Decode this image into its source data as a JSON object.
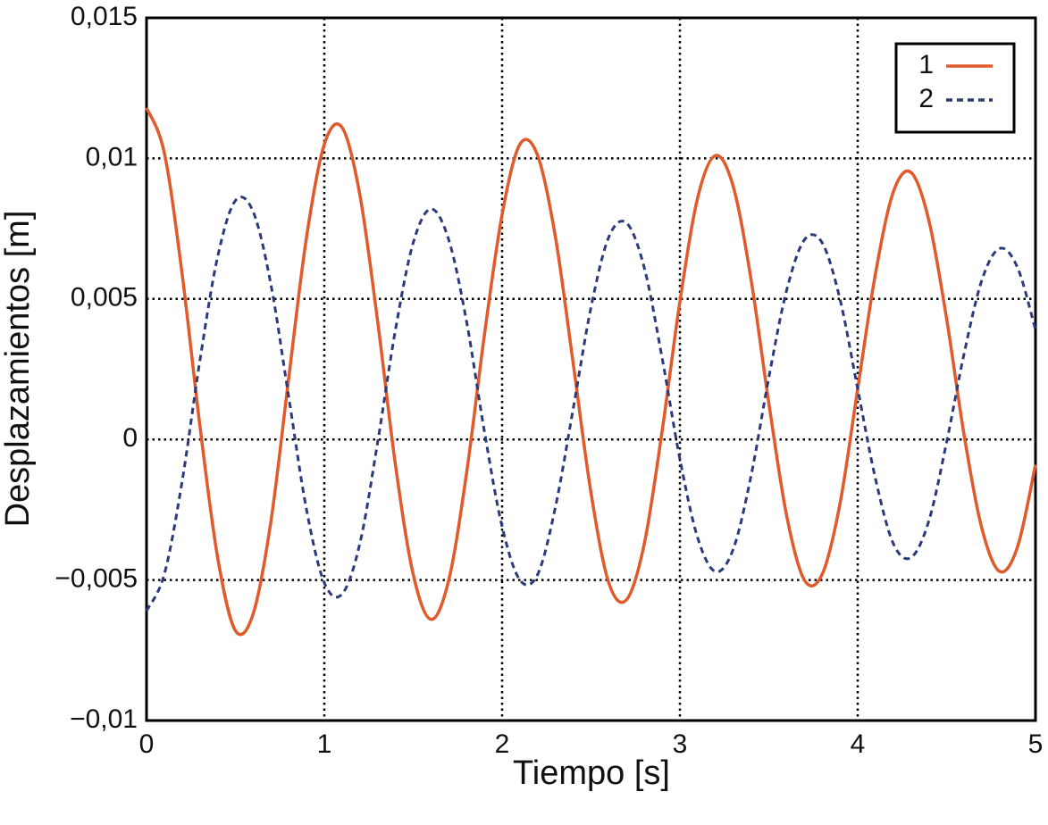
{
  "chart_data": {
    "type": "line",
    "xlabel": "Tiempo [s]",
    "ylabel": "Desplazamientos [m]",
    "x": [
      0,
      0.1,
      0.2,
      0.3,
      0.4,
      0.5,
      0.6,
      0.7,
      0.8,
      0.9,
      1,
      1.1,
      1.2,
      1.3,
      1.4,
      1.5,
      1.6,
      1.7,
      1.8,
      1.9,
      2,
      2.1,
      2.2,
      2.3,
      2.4,
      2.5,
      2.6,
      2.7,
      2.8,
      2.9,
      3,
      3.1,
      3.2,
      3.3,
      3.4,
      3.5,
      3.6,
      3.7,
      3.8,
      3.9,
      4,
      4.1,
      4.2,
      4.3,
      4.4,
      4.5,
      4.6,
      4.7,
      4.8,
      4.9,
      5
    ],
    "series": [
      {
        "name": "1",
        "color": "#e05a2b",
        "dashed": false,
        "values": [
          0.0118,
          0.0102,
          0.0059,
          0.0005,
          -0.0042,
          -0.0068,
          -0.0062,
          -0.0029,
          0.0022,
          0.0072,
          0.0105,
          0.0111,
          0.0087,
          0.0042,
          -0.0009,
          -0.0048,
          -0.0064,
          -0.005,
          -0.0012,
          0.0037,
          0.008,
          0.0105,
          0.0101,
          0.0072,
          0.0027,
          -0.0019,
          -0.0051,
          -0.0057,
          -0.0037,
          0.0003,
          0.0049,
          0.0086,
          0.0101,
          0.009,
          0.0057,
          0.0013,
          -0.0027,
          -0.005,
          -0.0048,
          -0.0023,
          0.0018,
          0.0059,
          0.0088,
          0.0095,
          0.0078,
          0.0043,
          0.0001,
          -0.0032,
          -0.0047,
          -0.0038,
          -0.0009
        ]
      },
      {
        "name": "2",
        "color": "#2b3a7a",
        "dashed": true,
        "values": [
          -0.0061,
          -0.0048,
          -0.0015,
          0.0028,
          0.0065,
          0.0085,
          0.0081,
          0.0055,
          0.0015,
          -0.0025,
          -0.0051,
          -0.0055,
          -0.0037,
          -0.0001,
          0.0039,
          0.007,
          0.0082,
          0.0071,
          0.0042,
          0.0003,
          -0.0031,
          -0.005,
          -0.0048,
          -0.0024,
          0.0011,
          0.0047,
          0.0072,
          0.0077,
          0.0061,
          0.0029,
          -0.0007,
          -0.0035,
          -0.0047,
          -0.0039,
          -0.0013,
          0.0022,
          0.0053,
          0.0071,
          0.007,
          0.005,
          0.0018,
          -0.0014,
          -0.0037,
          -0.0042,
          -0.0029,
          -0.0001,
          0.0031,
          0.0057,
          0.0068,
          0.0061,
          0.0039
        ]
      }
    ],
    "xlim": [
      0,
      5
    ],
    "xticks": [
      0,
      1,
      2,
      3,
      4,
      5
    ],
    "ylim": [
      -0.01,
      0.015
    ],
    "yticks": [
      {
        "value": -0.01,
        "label": "−0,01"
      },
      {
        "value": -0.005,
        "label": "−0,005"
      },
      0,
      {
        "value": 0.005,
        "label": "0,005"
      },
      {
        "value": 0.01,
        "label": "0,01"
      },
      {
        "value": 0.015,
        "label": "0,015"
      }
    ],
    "grid": true,
    "legend": "upper right"
  }
}
